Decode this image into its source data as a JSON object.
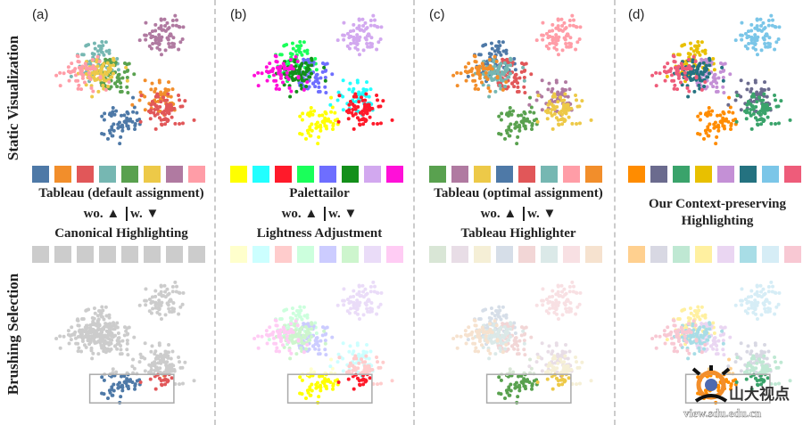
{
  "row_labels": [
    "Static Visualization",
    "Brushing Selection"
  ],
  "panels": [
    {
      "label": "(a)",
      "caption": "Tableau (default assignment)",
      "toggle": {
        "without": "wo.",
        "with": "w."
      },
      "method": "Canonical Highlighting",
      "colors": [
        "#4e79a7",
        "#f28e2b",
        "#e15759",
        "#76b7b2",
        "#59a14f",
        "#edc948",
        "#b07aa1",
        "#ff9da7"
      ],
      "faded": [
        "#cccccc",
        "#cccccc",
        "#cccccc",
        "#cccccc",
        "#cccccc",
        "#cccccc",
        "#cccccc",
        "#cccccc"
      ]
    },
    {
      "label": "(b)",
      "caption": "Palettailor",
      "toggle": {
        "without": "wo.",
        "with": "w."
      },
      "method": "Lightness Adjustment",
      "colors": [
        "#ffff00",
        "#22ffff",
        "#ff1a2a",
        "#1aff5a",
        "#6e6eff",
        "#138f1a",
        "#d2a8ef",
        "#ff10d8"
      ],
      "faded": [
        "#ffffcc",
        "#ccffff",
        "#ffcccc",
        "#ccffdd",
        "#ccccff",
        "#cdf5cd",
        "#eadcf8",
        "#ffccf4"
      ]
    },
    {
      "label": "(c)",
      "caption": "Tableau (optimal assignment)",
      "toggle": {
        "without": "wo.",
        "with": "w."
      },
      "method": "Tableau Highlighter",
      "colors": [
        "#59a14f",
        "#b07aa1",
        "#edc948",
        "#4e79a7",
        "#e15759",
        "#76b7b2",
        "#ff9da7",
        "#f28e2b"
      ],
      "faded": [
        "#d9e6d6",
        "#e8dde6",
        "#f5efd6",
        "#d6dee8",
        "#f2d6d6",
        "#dbe9e8",
        "#f8e0e3",
        "#f6e2cf"
      ]
    },
    {
      "label": "(d)",
      "caption": "Our Context-preserving Highlighting",
      "toggle": null,
      "method": "",
      "colors": [
        "#ff8c00",
        "#6b6b8e",
        "#3aa36b",
        "#e8c000",
        "#c490d6",
        "#247280",
        "#7bc6e8",
        "#ee5c7a"
      ],
      "faded": [
        "#ffd08f",
        "#d8d8e3",
        "#bfe8d3",
        "#fff0a0",
        "#ead6f2",
        "#a8dde6",
        "#d6edf6",
        "#f8c8d3"
      ]
    }
  ],
  "chart_data": {
    "type": "scatter",
    "xlim": [
      0,
      100
    ],
    "ylim": [
      0,
      100
    ],
    "grid": false,
    "clusters": [
      {
        "center": [
          48,
          78
        ],
        "n": 60
      },
      {
        "center": [
          70,
          62
        ],
        "n": 50
      },
      {
        "center": [
          74,
          70
        ],
        "n": 70
      },
      {
        "center": [
          36,
          38
        ],
        "n": 70
      },
      {
        "center": [
          46,
          48
        ],
        "n": 60
      },
      {
        "center": [
          38,
          46
        ],
        "n": 70
      },
      {
        "center": [
          72,
          20
        ],
        "n": 70
      },
      {
        "center": [
          28,
          44
        ],
        "n": 60
      }
    ],
    "brush_x": [
      32,
      78
    ],
    "brush_y": [
      72,
      92
    ]
  },
  "watermark": {
    "text": "山大视点",
    "url": "view.sdu.edu.cn"
  }
}
